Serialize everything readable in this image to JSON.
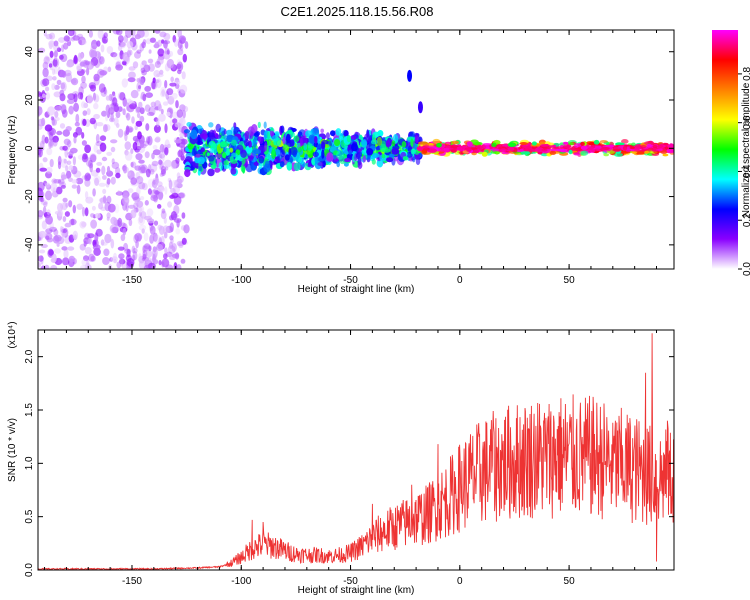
{
  "title": "C2E1.2025.118.15.56.R08",
  "chart_data": [
    {
      "type": "heatmap",
      "xlabel": "Height of straight line (km)",
      "ylabel": "Frequency (Hz)",
      "xlim": [
        -193,
        98
      ],
      "ylim": [
        -50,
        49
      ],
      "xticks": [
        -150,
        -100,
        -50,
        0,
        50
      ],
      "xtick_labels": [
        "-150",
        "-100",
        "-50",
        "0",
        "50"
      ],
      "yticks": [
        -40,
        -20,
        0,
        20,
        40
      ],
      "ytick_labels": [
        "-40",
        "-20",
        "0",
        "20",
        "40"
      ],
      "colorbar": {
        "label": "Normalized spectral amplitude",
        "range": [
          0,
          0.98
        ],
        "ticks": [
          0,
          0.2,
          0.4,
          0.6,
          0.8
        ],
        "tick_labels": [
          "0.0",
          "0.2",
          "0.4",
          "0.6",
          "0.8"
        ],
        "colormap": [
          "#ffffff",
          "#8a00ff",
          "#0000ff",
          "#00ffff",
          "#00ff00",
          "#ffff00",
          "#ff8000",
          "#ff0000",
          "#ff00ff"
        ]
      },
      "regions": [
        {
          "x": [
            -193,
            -125
          ],
          "y": [
            -50,
            49
          ],
          "amplitude": [
            0.02,
            0.12
          ]
        },
        {
          "x": [
            -125,
            -18
          ],
          "y": [
            -12,
            12
          ],
          "amplitude": [
            0.1,
            0.45
          ]
        },
        {
          "x": [
            -18,
            98
          ],
          "y": [
            -3,
            3
          ],
          "amplitude": [
            0.4,
            0.98
          ]
        }
      ],
      "grid": false
    },
    {
      "type": "line",
      "xlabel": "Height of straight line (km)",
      "ylabel": "SNR (10 * v/v)",
      "y_multiplier": "(x10⁴)",
      "xlim": [
        -193,
        98
      ],
      "ylim": [
        0,
        2.25
      ],
      "xticks": [
        -150,
        -100,
        -50,
        0,
        50
      ],
      "xtick_labels": [
        "-150",
        "-100",
        "-50",
        "0",
        "50"
      ],
      "yticks": [
        0,
        0.5,
        1.0,
        1.5,
        2.0
      ],
      "ytick_labels": [
        "0.0",
        "0.5",
        "1.0",
        "1.5",
        "2.0"
      ],
      "series": [
        {
          "color": "#ee3333",
          "x": [
            -193,
            -180,
            -160,
            -140,
            -120,
            -110,
            -105,
            -100,
            -95,
            -90,
            -85,
            -80,
            -75,
            -70,
            -65,
            -60,
            -55,
            -50,
            -45,
            -40,
            -35,
            -30,
            -25,
            -20,
            -15,
            -10,
            -5,
            0,
            5,
            10,
            15,
            20,
            25,
            30,
            35,
            40,
            45,
            50,
            55,
            60,
            65,
            70,
            75,
            80,
            85,
            88,
            90,
            92,
            95,
            98
          ],
          "y": [
            0.01,
            0.01,
            0.01,
            0.01,
            0.02,
            0.03,
            0.06,
            0.12,
            0.2,
            0.24,
            0.22,
            0.18,
            0.15,
            0.14,
            0.14,
            0.13,
            0.14,
            0.16,
            0.22,
            0.3,
            0.36,
            0.4,
            0.44,
            0.48,
            0.52,
            0.6,
            0.68,
            0.78,
            0.86,
            0.92,
            0.96,
            1.0,
            1.02,
            1.04,
            1.06,
            1.05,
            1.08,
            1.07,
            1.05,
            1.06,
            1.04,
            1.0,
            0.98,
            0.95,
            0.9,
            0.88,
            0.86,
            0.88,
            0.86,
            0.9
          ],
          "spikes": [
            {
              "x": -95,
              "y": 0.47
            },
            {
              "x": -90,
              "y": 0.45
            },
            {
              "x": -40,
              "y": 0.62
            },
            {
              "x": -22,
              "y": 0.8
            },
            {
              "x": -10,
              "y": 1.18
            },
            {
              "x": 15,
              "y": 1.25
            },
            {
              "x": 45,
              "y": 1.35
            },
            {
              "x": 65,
              "y": 1.32
            },
            {
              "x": 70,
              "y": 1.38
            },
            {
              "x": 85,
              "y": 1.85
            },
            {
              "x": 88,
              "y": 2.22
            },
            {
              "x": 90,
              "y": 0.08
            },
            {
              "x": 95,
              "y": 1.4
            }
          ]
        }
      ],
      "grid": false
    }
  ]
}
